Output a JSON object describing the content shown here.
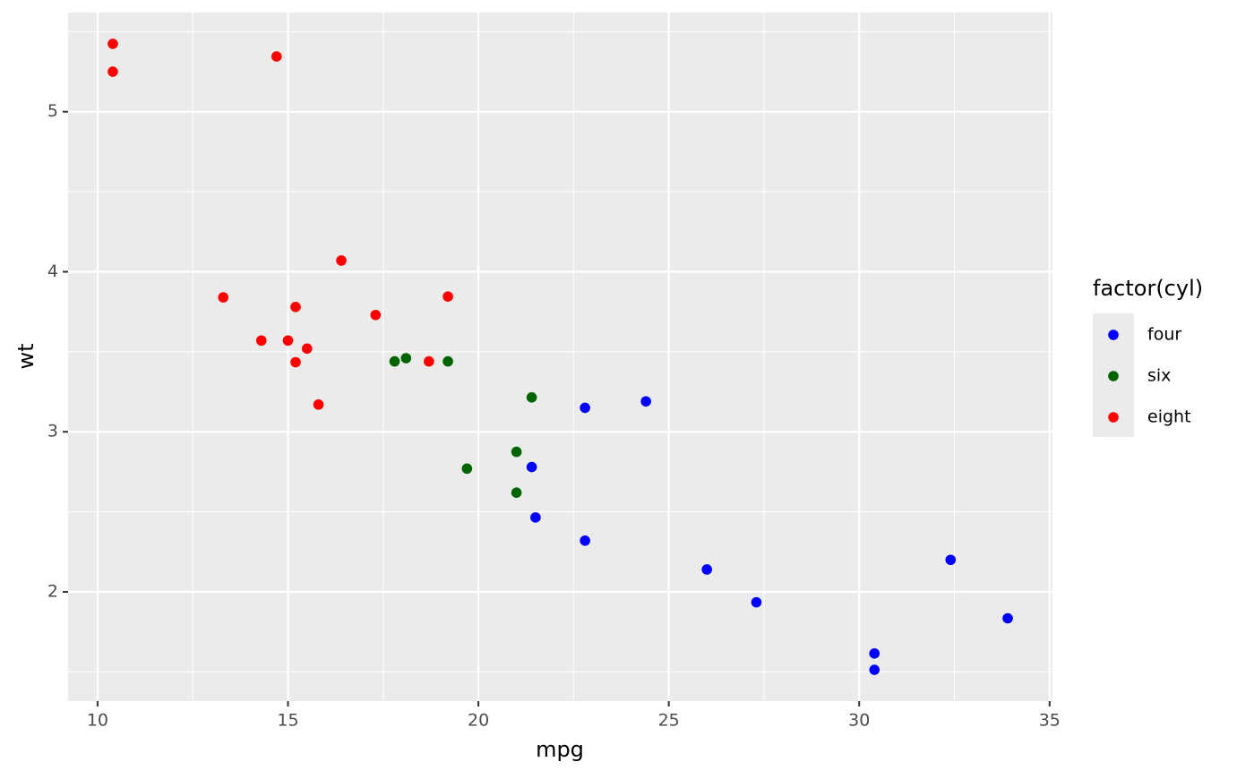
{
  "chart_data": {
    "type": "scatter",
    "x_label": "mpg",
    "y_label": "wt",
    "legend_title": "factor(cyl)",
    "legend_position": "right",
    "grid": true,
    "xlim": [
      9.225,
      35.075
    ],
    "xticks": [
      10,
      15,
      20,
      25,
      30,
      35
    ],
    "ylim": [
      1.31745,
      5.61955
    ],
    "yticks": [
      2,
      3,
      4,
      5
    ],
    "series": [
      {
        "name": "four",
        "color": "#0000ff",
        "x": [
          22.8,
          24.4,
          22.8,
          32.4,
          30.4,
          33.9,
          21.5,
          27.3,
          26.0,
          30.4,
          21.4
        ],
        "values": [
          2.32,
          3.19,
          3.15,
          2.2,
          1.615,
          1.835,
          2.465,
          1.935,
          2.14,
          1.513,
          2.78
        ]
      },
      {
        "name": "six",
        "color": "#006400",
        "x": [
          21.0,
          21.0,
          21.4,
          18.1,
          19.2,
          17.8,
          19.7
        ],
        "values": [
          2.62,
          2.875,
          3.215,
          3.46,
          3.44,
          3.44,
          2.77
        ]
      },
      {
        "name": "eight",
        "color": "#ff0000",
        "x": [
          18.7,
          14.3,
          16.4,
          17.3,
          15.2,
          10.4,
          10.4,
          14.7,
          15.5,
          15.2,
          13.3,
          19.2,
          15.8,
          15.0
        ],
        "values": [
          3.44,
          3.57,
          4.07,
          3.73,
          3.78,
          5.25,
          5.424,
          5.345,
          3.52,
          3.435,
          3.84,
          3.845,
          3.17,
          3.57
        ]
      }
    ]
  }
}
